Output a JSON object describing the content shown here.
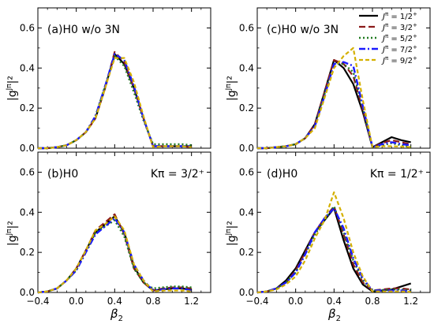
{
  "figure": {
    "y_axis_label": "|g",
    "y_axis_label_sup": "Jπ",
    "y_axis_label_end": "|²",
    "x_axis_label": "β",
    "x_axis_label_sub": "2"
  },
  "legend": {
    "entries": [
      {
        "prefix": "J",
        "sup": "π",
        "text": " = 1/2",
        "parity": "+"
      },
      {
        "prefix": "J",
        "sup": "π",
        "text": " = 3/2",
        "parity": "+"
      },
      {
        "prefix": "J",
        "sup": "π",
        "text": " = 5/2",
        "parity": "+"
      },
      {
        "prefix": "J",
        "sup": "π",
        "text": " = 7/2",
        "parity": "+"
      },
      {
        "prefix": "J",
        "sup": "π",
        "text": " = 9/2",
        "parity": "+"
      }
    ]
  },
  "series_styles": [
    {
      "color": "#000000",
      "dash": "",
      "width": 2.2
    },
    {
      "color": "#8b1a1a",
      "dash": "8,4",
      "width": 2.2
    },
    {
      "color": "#1f7a1f",
      "dash": "2,3",
      "width": 2.4
    },
    {
      "color": "#1a1aff",
      "dash": "8,3,2,3",
      "width": 2.4
    },
    {
      "color": "#d4b000",
      "dash": "5,3",
      "width": 2.2
    }
  ],
  "chart_data": [
    {
      "type": "line",
      "panel": "a",
      "label": "(a)H0 w/o 3N",
      "k_label": "",
      "x": [
        -0.4,
        -0.3,
        -0.2,
        -0.1,
        0.0,
        0.1,
        0.2,
        0.3,
        0.4,
        0.5,
        0.6,
        0.7,
        0.8,
        0.9,
        1.0,
        1.1,
        1.2
      ],
      "xlim": [
        -0.4,
        1.4
      ],
      "ylim": [
        0,
        0.7
      ],
      "xticks": [
        "−0.4",
        "0.0",
        "0.4",
        "0.8",
        "1.2"
      ],
      "yticks": [
        "0.0",
        "0.2",
        "0.4",
        "0.6"
      ],
      "show_xticklabels": false,
      "series": [
        {
          "values": [
            0.0,
            0.0,
            0.005,
            0.015,
            0.04,
            0.08,
            0.15,
            0.3,
            0.47,
            0.42,
            0.3,
            0.15,
            0.01,
            0.01,
            0.01,
            0.01,
            0.01
          ]
        },
        {
          "values": [
            0.0,
            0.0,
            0.005,
            0.015,
            0.04,
            0.08,
            0.15,
            0.3,
            0.48,
            0.43,
            0.3,
            0.15,
            0.01,
            0.01,
            0.01,
            0.01,
            0.005
          ]
        },
        {
          "values": [
            0.0,
            0.0,
            0.005,
            0.015,
            0.04,
            0.08,
            0.16,
            0.31,
            0.46,
            0.41,
            0.28,
            0.14,
            0.02,
            0.02,
            0.02,
            0.02,
            0.015
          ]
        },
        {
          "values": [
            0.0,
            0.0,
            0.005,
            0.015,
            0.04,
            0.08,
            0.16,
            0.31,
            0.47,
            0.44,
            0.31,
            0.15,
            0.01,
            0.01,
            0.01,
            0.01,
            0.01
          ]
        },
        {
          "values": [
            0.0,
            0.0,
            0.005,
            0.015,
            0.04,
            0.08,
            0.15,
            0.3,
            0.45,
            0.45,
            0.33,
            0.16,
            0.005,
            0.01,
            0.01,
            0.01,
            0.005
          ]
        }
      ]
    },
    {
      "type": "line",
      "panel": "c",
      "label": "(c)H0 w/o 3N",
      "k_label": "",
      "x": [
        -0.4,
        -0.3,
        -0.2,
        -0.1,
        0.0,
        0.1,
        0.2,
        0.3,
        0.4,
        0.5,
        0.6,
        0.7,
        0.8,
        0.9,
        1.0,
        1.1,
        1.2
      ],
      "xlim": [
        -0.4,
        1.4
      ],
      "ylim": [
        0,
        0.7
      ],
      "xticks": [
        "−0.4",
        "0.0",
        "0.4",
        "0.8",
        "1.2"
      ],
      "yticks": [
        "0.0",
        "0.2",
        "0.4",
        "0.6"
      ],
      "show_xticklabels": false,
      "series": [
        {
          "values": [
            0.0,
            0.0,
            0.005,
            0.01,
            0.02,
            0.05,
            0.12,
            0.28,
            0.44,
            0.4,
            0.32,
            0.18,
            0.005,
            0.03,
            0.055,
            0.04,
            0.03
          ]
        },
        {
          "values": [
            0.0,
            0.0,
            0.005,
            0.01,
            0.02,
            0.05,
            0.12,
            0.28,
            0.44,
            0.42,
            0.36,
            0.19,
            0.005,
            0.025,
            0.04,
            0.03,
            0.02
          ]
        },
        {
          "values": [
            0.0,
            0.0,
            0.005,
            0.01,
            0.02,
            0.05,
            0.11,
            0.27,
            0.42,
            0.42,
            0.38,
            0.2,
            0.005,
            0.015,
            0.025,
            0.015,
            0.005
          ]
        },
        {
          "values": [
            0.0,
            0.0,
            0.005,
            0.01,
            0.02,
            0.05,
            0.11,
            0.26,
            0.42,
            0.43,
            0.41,
            0.21,
            0.005,
            0.02,
            0.03,
            0.02,
            0.015
          ]
        },
        {
          "values": [
            0.0,
            0.0,
            0.005,
            0.01,
            0.02,
            0.05,
            0.1,
            0.25,
            0.4,
            0.46,
            0.5,
            0.24,
            0.005,
            0.01,
            0.01,
            0.008,
            0.005
          ]
        }
      ]
    },
    {
      "type": "line",
      "panel": "b",
      "label": "(b)H0",
      "k_label": "Kπ = 3/2⁺",
      "x": [
        -0.4,
        -0.3,
        -0.2,
        -0.1,
        0.0,
        0.1,
        0.2,
        0.3,
        0.4,
        0.5,
        0.6,
        0.7,
        0.8,
        0.9,
        1.0,
        1.1,
        1.2
      ],
      "xlim": [
        -0.4,
        1.4
      ],
      "ylim": [
        0,
        0.7
      ],
      "xticks": [
        "−0.4",
        "0.0",
        "0.4",
        "0.8",
        "1.2"
      ],
      "yticks": [
        "0.0",
        "0.2",
        "0.4",
        "0.6"
      ],
      "show_xticklabels": true,
      "series": [
        {
          "values": [
            0.0,
            0.005,
            0.02,
            0.06,
            0.12,
            0.21,
            0.3,
            0.34,
            0.38,
            0.3,
            0.13,
            0.05,
            0.01,
            0.015,
            0.02,
            0.02,
            0.015
          ]
        },
        {
          "values": [
            0.0,
            0.005,
            0.02,
            0.06,
            0.12,
            0.21,
            0.31,
            0.35,
            0.39,
            0.29,
            0.12,
            0.05,
            0.01,
            0.02,
            0.025,
            0.025,
            0.02
          ]
        },
        {
          "values": [
            0.0,
            0.005,
            0.02,
            0.06,
            0.11,
            0.2,
            0.3,
            0.33,
            0.36,
            0.28,
            0.12,
            0.05,
            0.02,
            0.025,
            0.03,
            0.03,
            0.025
          ]
        },
        {
          "values": [
            0.0,
            0.005,
            0.02,
            0.06,
            0.11,
            0.2,
            0.29,
            0.33,
            0.37,
            0.3,
            0.14,
            0.06,
            0.01,
            0.015,
            0.02,
            0.02,
            0.01
          ]
        },
        {
          "values": [
            0.0,
            0.005,
            0.02,
            0.06,
            0.12,
            0.21,
            0.31,
            0.34,
            0.38,
            0.31,
            0.14,
            0.06,
            0.005,
            0.01,
            0.01,
            0.01,
            0.005
          ]
        }
      ]
    },
    {
      "type": "line",
      "panel": "d",
      "label": "(d)H0",
      "k_label": "Kπ = 1/2⁺",
      "x": [
        -0.4,
        -0.3,
        -0.2,
        -0.1,
        0.0,
        0.1,
        0.2,
        0.3,
        0.4,
        0.5,
        0.6,
        0.7,
        0.8,
        0.9,
        1.0,
        1.1,
        1.2
      ],
      "xlim": [
        -0.4,
        1.4
      ],
      "ylim": [
        0,
        0.7
      ],
      "xticks": [
        "−0.4",
        "0.0",
        "0.4",
        "0.8",
        "1.2"
      ],
      "yticks": [
        "0.0",
        "0.2",
        "0.4",
        "0.6"
      ],
      "show_xticklabels": true,
      "series": [
        {
          "values": [
            0.0,
            0.005,
            0.02,
            0.06,
            0.12,
            0.21,
            0.3,
            0.36,
            0.42,
            0.26,
            0.12,
            0.04,
            0.005,
            0.01,
            0.015,
            0.03,
            0.045
          ]
        },
        {
          "values": [
            0.0,
            0.005,
            0.02,
            0.05,
            0.11,
            0.2,
            0.3,
            0.37,
            0.43,
            0.29,
            0.14,
            0.05,
            0.01,
            0.015,
            0.02,
            0.02,
            0.015
          ]
        },
        {
          "values": [
            0.0,
            0.005,
            0.02,
            0.05,
            0.1,
            0.19,
            0.29,
            0.36,
            0.43,
            0.3,
            0.16,
            0.06,
            0.01,
            0.012,
            0.015,
            0.015,
            0.01
          ]
        },
        {
          "values": [
            0.0,
            0.005,
            0.02,
            0.05,
            0.1,
            0.19,
            0.3,
            0.37,
            0.42,
            0.32,
            0.17,
            0.07,
            0.01,
            0.01,
            0.01,
            0.01,
            0.005
          ]
        },
        {
          "values": [
            0.0,
            0.005,
            0.015,
            0.04,
            0.08,
            0.16,
            0.27,
            0.36,
            0.5,
            0.37,
            0.2,
            0.08,
            0.005,
            0.005,
            0.005,
            0.005,
            0.003
          ]
        }
      ]
    }
  ]
}
